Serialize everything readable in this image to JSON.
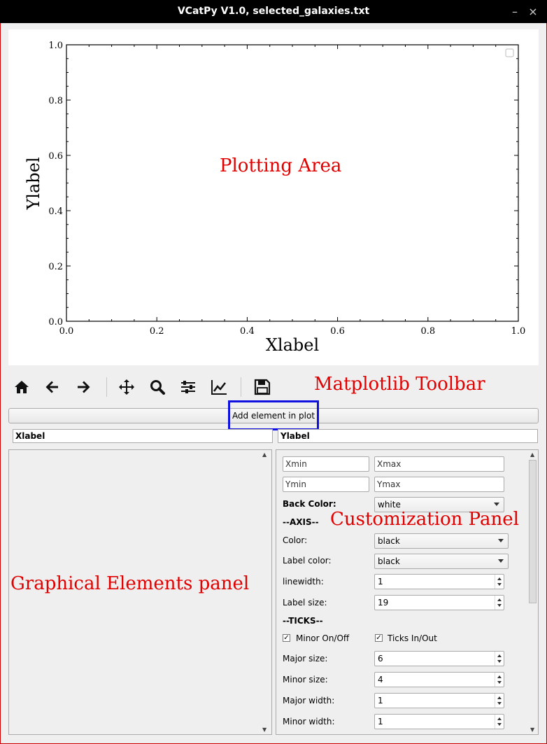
{
  "window": {
    "title": "VCatPy V1.0, selected_galaxies.txt",
    "minimize_glyph": "–",
    "close_glyph": "×"
  },
  "plot": {
    "xlabel": "Xlabel",
    "ylabel": "Ylabel",
    "x_ticks": [
      "0.0",
      "0.2",
      "0.4",
      "0.6",
      "0.8",
      "1.0"
    ],
    "y_ticks": [
      "0.0",
      "0.2",
      "0.4",
      "0.6",
      "0.8",
      "1.0"
    ],
    "xlim": [
      0,
      1
    ],
    "ylim": [
      0,
      1
    ]
  },
  "annotations": {
    "plotting_area": "Plotting Area",
    "matplotlib_toolbar": "Matplotlib Toolbar",
    "customization_panel": "Customization Panel",
    "graphical_elements_panel": "Graphical Elements panel"
  },
  "toolbar": {
    "icons": [
      "home-icon",
      "back-arrow-icon",
      "forward-arrow-icon",
      "pan-icon",
      "zoom-icon",
      "subplots-config-icon",
      "edit-axis-icon",
      "save-icon"
    ]
  },
  "add_element_button": "Add element in plot",
  "labels": {
    "xlabel_value": "Xlabel",
    "ylabel_value": "Ylabel"
  },
  "customization": {
    "xmin_placeholder": "Xmin",
    "xmax_placeholder": "Xmax",
    "ymin_placeholder": "Ymin",
    "ymax_placeholder": "Ymax",
    "back_color_label": "Back Color:",
    "back_color_value": "white",
    "axis_header": "--AXIS--",
    "axis_color_label": "Color:",
    "axis_color_value": "black",
    "label_color_label": "Label color:",
    "label_color_value": "black",
    "linewidth_label": "linewidth:",
    "linewidth_value": "1",
    "label_size_label": "Label size:",
    "label_size_value": "19",
    "ticks_header": "--TICKS--",
    "minor_onoff_label": "Minor On/Off",
    "ticks_inout_label": "Ticks In/Out",
    "major_size_label": "Major size:",
    "major_size_value": "6",
    "minor_size_label": "Minor size:",
    "minor_size_value": "4",
    "major_width_label": "Major width:",
    "major_width_value": "1",
    "minor_width_label": "Minor width:",
    "minor_width_value": "1"
  }
}
